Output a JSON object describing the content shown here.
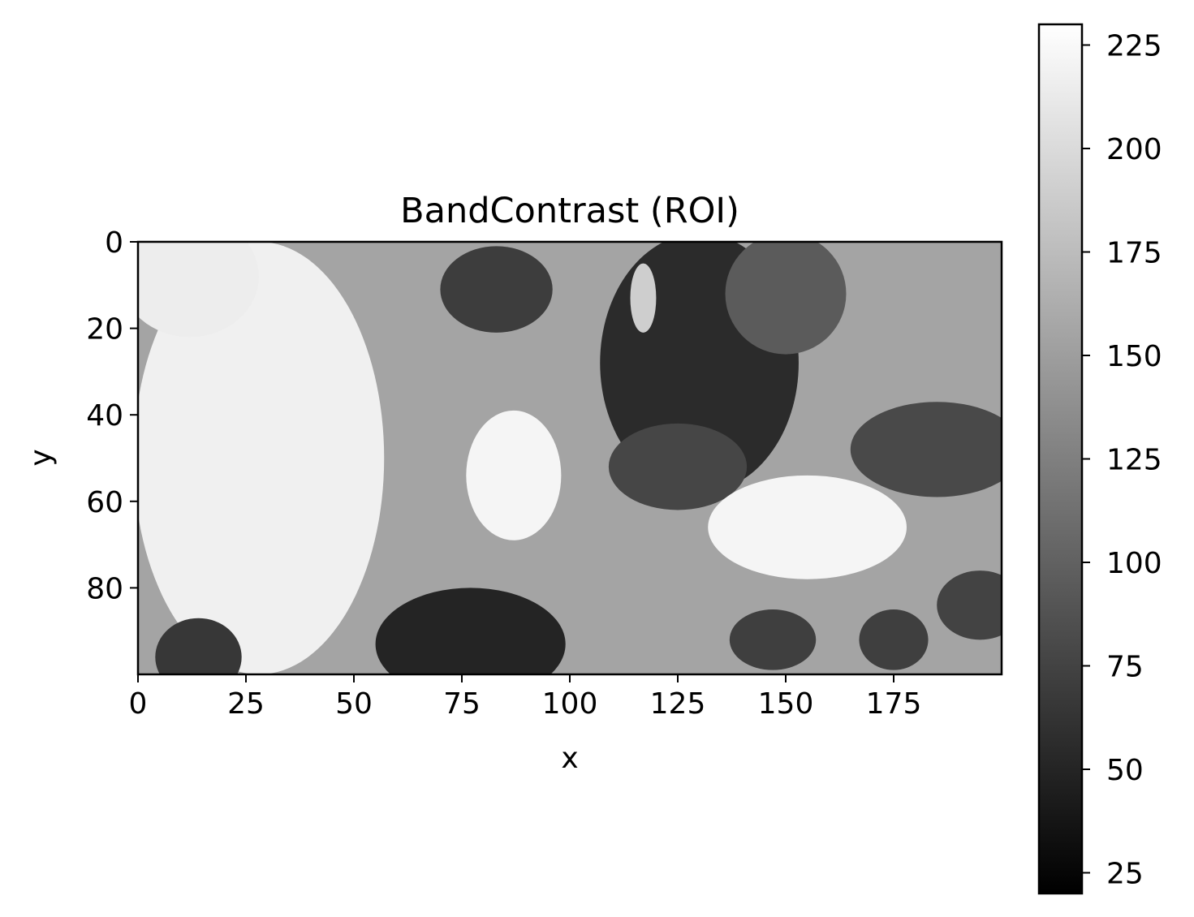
{
  "chart_data": {
    "type": "heatmap",
    "title": "BandContrast (ROI)",
    "xlabel": "x",
    "ylabel": "y",
    "grid": false,
    "colormap": "gray",
    "x_range": [
      0,
      200
    ],
    "y_range": [
      0,
      100
    ],
    "y_axis": "inverted",
    "xticks": [
      0,
      25,
      50,
      75,
      100,
      125,
      150,
      175
    ],
    "yticks": [
      0,
      20,
      40,
      60,
      80
    ],
    "colorbar": {
      "range": [
        20,
        230
      ],
      "ticks": [
        25,
        50,
        75,
        100,
        125,
        150,
        175,
        200,
        225
      ]
    },
    "background_level": 155,
    "regions": [
      {
        "desc": "bright grain left",
        "cx": 28,
        "cy": 50,
        "rx": 29,
        "ry": 50,
        "value": 218
      },
      {
        "desc": "bright grain upper-left cap",
        "cx": 12,
        "cy": 8,
        "rx": 16,
        "ry": 14,
        "value": 215
      },
      {
        "desc": "dark grain bottom-left",
        "cx": 14,
        "cy": 96,
        "rx": 10,
        "ry": 9,
        "value": 65
      },
      {
        "desc": "bright ellipse centre",
        "cx": 87,
        "cy": 54,
        "rx": 11,
        "ry": 15,
        "value": 222
      },
      {
        "desc": "dark grain bottom-centre",
        "cx": 77,
        "cy": 93,
        "rx": 22,
        "ry": 13,
        "value": 50
      },
      {
        "desc": "dark grain top-centre",
        "cx": 83,
        "cy": 11,
        "rx": 13,
        "ry": 10,
        "value": 70
      },
      {
        "desc": "dark grain upper-right large",
        "cx": 130,
        "cy": 28,
        "rx": 23,
        "ry": 30,
        "value": 55
      },
      {
        "desc": "dark lobe lower",
        "cx": 125,
        "cy": 52,
        "rx": 16,
        "ry": 10,
        "value": 78
      },
      {
        "desc": "bright spot in dark grain",
        "cx": 117,
        "cy": 13,
        "rx": 3,
        "ry": 8,
        "value": 190
      },
      {
        "desc": "mid grain top-right",
        "cx": 150,
        "cy": 12,
        "rx": 14,
        "ry": 14,
        "value": 95
      },
      {
        "desc": "dark grain right",
        "cx": 185,
        "cy": 48,
        "rx": 20,
        "ry": 11,
        "value": 80
      },
      {
        "desc": "bright grain lower-right",
        "cx": 155,
        "cy": 66,
        "rx": 23,
        "ry": 12,
        "value": 222
      },
      {
        "desc": "dark grain bottom-right a",
        "cx": 147,
        "cy": 92,
        "rx": 10,
        "ry": 7,
        "value": 72
      },
      {
        "desc": "dark grain bottom-right b",
        "cx": 175,
        "cy": 92,
        "rx": 8,
        "ry": 7,
        "value": 72
      },
      {
        "desc": "dark grain far right",
        "cx": 195,
        "cy": 84,
        "rx": 10,
        "ry": 8,
        "value": 75
      }
    ]
  }
}
